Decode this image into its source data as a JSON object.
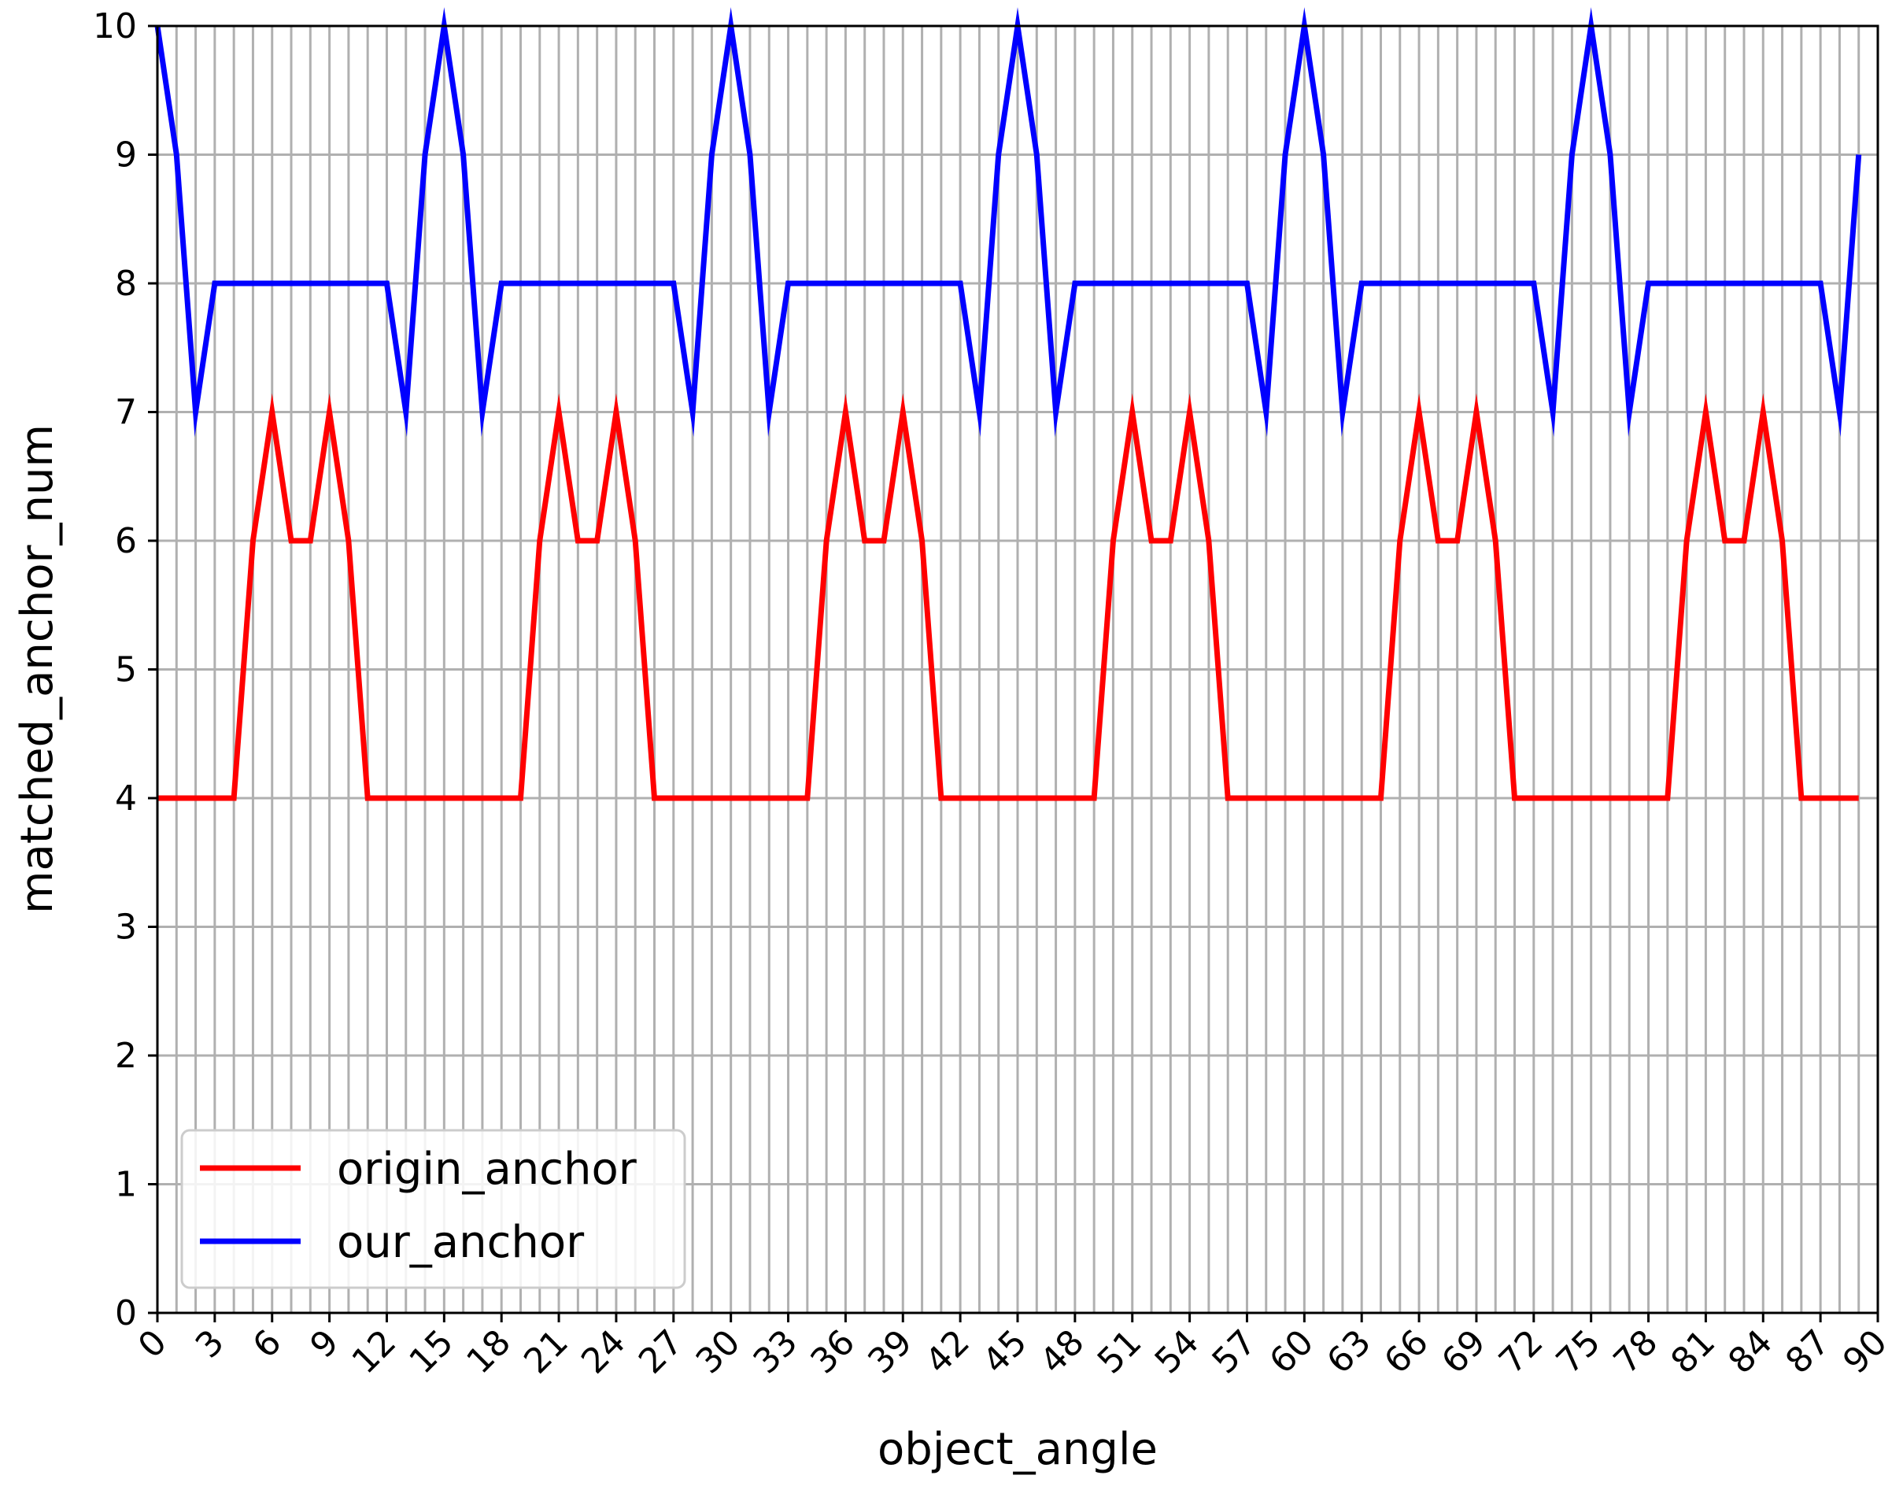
{
  "chart_data": {
    "type": "line",
    "title": "",
    "xlabel": "object_angle",
    "ylabel": "matched_anchor_num",
    "xlim": [
      0,
      90
    ],
    "ylim": [
      0,
      10
    ],
    "xticks": [
      0,
      3,
      6,
      9,
      12,
      15,
      18,
      21,
      24,
      27,
      30,
      33,
      36,
      39,
      42,
      45,
      48,
      51,
      54,
      57,
      60,
      63,
      66,
      69,
      72,
      75,
      78,
      81,
      84,
      87,
      90
    ],
    "yticks": [
      0,
      1,
      2,
      3,
      4,
      5,
      6,
      7,
      8,
      9,
      10
    ],
    "grid": true,
    "x_grid_step": 1,
    "legend_position": "lower-left",
    "x": [
      0,
      1,
      2,
      3,
      4,
      5,
      6,
      7,
      8,
      9,
      10,
      11,
      12,
      13,
      14,
      15,
      16,
      17,
      18,
      19,
      20,
      21,
      22,
      23,
      24,
      25,
      26,
      27,
      28,
      29,
      30,
      31,
      32,
      33,
      34,
      35,
      36,
      37,
      38,
      39,
      40,
      41,
      42,
      43,
      44,
      45,
      46,
      47,
      48,
      49,
      50,
      51,
      52,
      53,
      54,
      55,
      56,
      57,
      58,
      59,
      60,
      61,
      62,
      63,
      64,
      65,
      66,
      67,
      68,
      69,
      70,
      71,
      72,
      73,
      74,
      75,
      76,
      77,
      78,
      79,
      80,
      81,
      82,
      83,
      84,
      85,
      86,
      87,
      88,
      89
    ],
    "series": [
      {
        "name": "origin_anchor",
        "color": "#ff0000",
        "values": [
          4,
          4,
          4,
          4,
          4,
          6,
          7,
          6,
          6,
          7,
          6,
          4,
          4,
          4,
          4,
          4,
          4,
          4,
          4,
          4,
          6,
          7,
          6,
          6,
          7,
          6,
          4,
          4,
          4,
          4,
          4,
          4,
          4,
          4,
          4,
          6,
          7,
          6,
          6,
          7,
          6,
          4,
          4,
          4,
          4,
          4,
          4,
          4,
          4,
          4,
          6,
          7,
          6,
          6,
          7,
          6,
          4,
          4,
          4,
          4,
          4,
          4,
          4,
          4,
          4,
          6,
          7,
          6,
          6,
          7,
          6,
          4,
          4,
          4,
          4,
          4,
          4,
          4,
          4,
          4,
          6,
          7,
          6,
          6,
          7,
          6,
          4,
          4,
          4,
          4
        ]
      },
      {
        "name": "our_anchor",
        "color": "#0000ff",
        "values": [
          10,
          9,
          7,
          8,
          8,
          8,
          8,
          8,
          8,
          8,
          8,
          8,
          8,
          7,
          9,
          10,
          9,
          7,
          8,
          8,
          8,
          8,
          8,
          8,
          8,
          8,
          8,
          8,
          7,
          9,
          10,
          9,
          7,
          8,
          8,
          8,
          8,
          8,
          8,
          8,
          8,
          8,
          8,
          7,
          9,
          10,
          9,
          7,
          8,
          8,
          8,
          8,
          8,
          8,
          8,
          8,
          8,
          8,
          7,
          9,
          10,
          9,
          7,
          8,
          8,
          8,
          8,
          8,
          8,
          8,
          8,
          8,
          8,
          7,
          9,
          10,
          9,
          7,
          8,
          8,
          8,
          8,
          8,
          8,
          8,
          8,
          8,
          8,
          7,
          9
        ]
      }
    ]
  }
}
